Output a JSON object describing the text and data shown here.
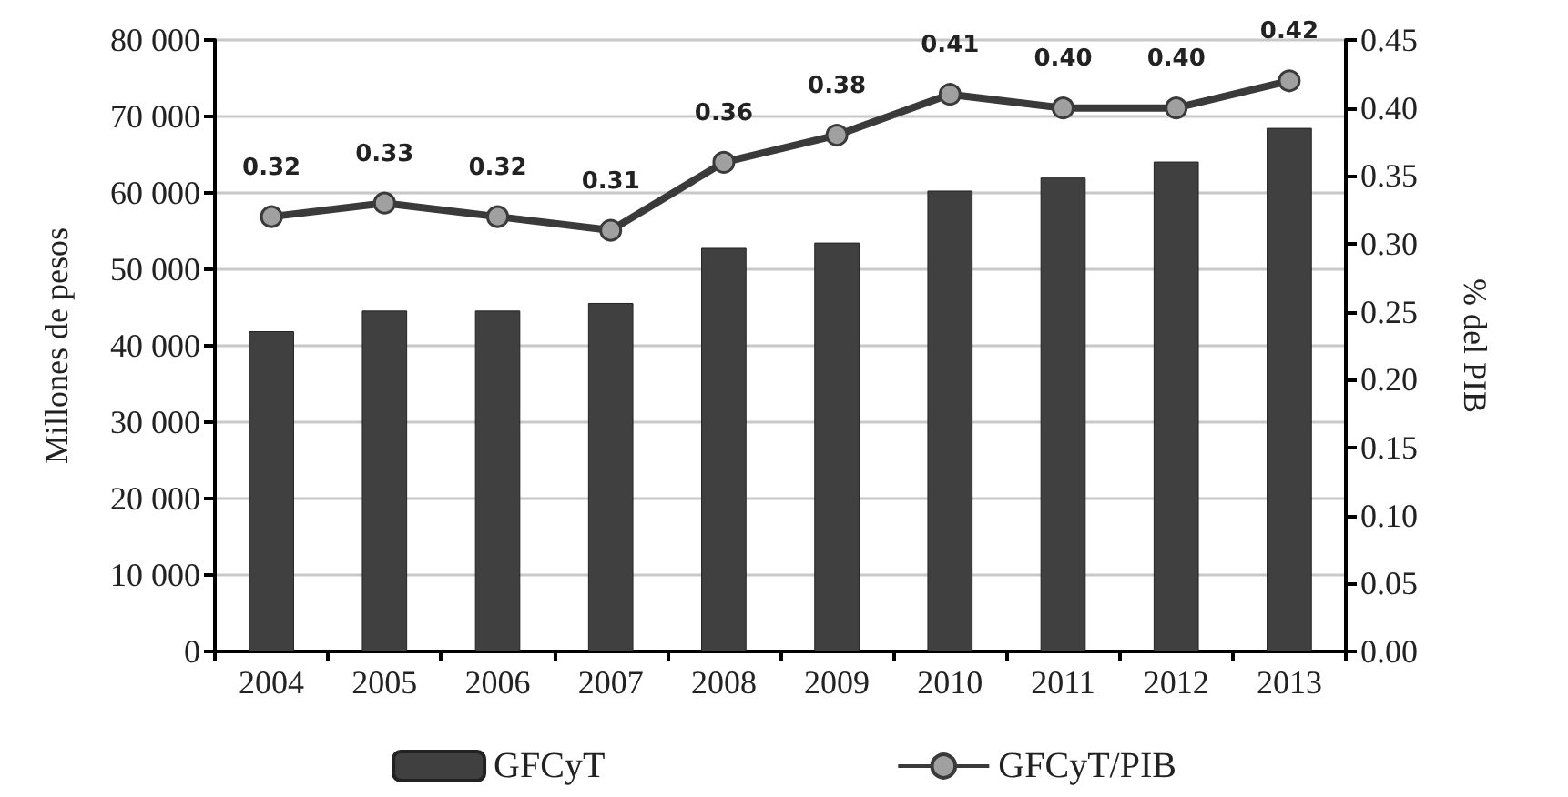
{
  "chart_data": {
    "type": "bar",
    "ylabel": "Millones de pesos",
    "y2label": "% del PIB",
    "categories": [
      "2004",
      "2005",
      "2006",
      "2007",
      "2008",
      "2009",
      "2010",
      "2011",
      "2012",
      "2013"
    ],
    "series": [
      {
        "name": "GFCyT",
        "color": "#404040",
        "values": [
          41900,
          44600,
          44600,
          45600,
          52800,
          53500,
          60300,
          62000,
          64100,
          68500
        ]
      },
      {
        "name": "GFCyT/PIB",
        "type": "line",
        "axis": "y2",
        "color": "#3a3a3a",
        "marker": "circle",
        "values": [
          0.32,
          0.33,
          0.32,
          0.31,
          0.36,
          0.38,
          0.41,
          0.4,
          0.4,
          0.42
        ],
        "value_labels": [
          "0.32",
          "0.33",
          "0.32",
          "0.31",
          "0.36",
          "0.38",
          "0.41",
          "0.40",
          "0.40",
          "0.42"
        ]
      }
    ],
    "ylim": [
      0,
      80000
    ],
    "yticks": [
      {
        "value": 0,
        "label": "0"
      },
      {
        "value": 10000,
        "label": "10 000"
      },
      {
        "value": 20000,
        "label": "20 000"
      },
      {
        "value": 30000,
        "label": "30 000"
      },
      {
        "value": 40000,
        "label": "40 000"
      },
      {
        "value": 50000,
        "label": "50 000"
      },
      {
        "value": 60000,
        "label": "60 000"
      },
      {
        "value": 70000,
        "label": "70 000"
      },
      {
        "value": 80000,
        "label": "80 000"
      }
    ],
    "y2lim": [
      0,
      0.45
    ],
    "y2ticks": [
      {
        "value": 0,
        "label": "0.00"
      },
      {
        "value": 0.05,
        "label": "0.05"
      },
      {
        "value": 0.1,
        "label": "0.10"
      },
      {
        "value": 0.15,
        "label": "0.15"
      },
      {
        "value": 0.2,
        "label": "0.20"
      },
      {
        "value": 0.25,
        "label": "0.25"
      },
      {
        "value": 0.3,
        "label": "0.30"
      },
      {
        "value": 0.35,
        "label": "0.35"
      },
      {
        "value": 0.4,
        "label": "0.40"
      },
      {
        "value": 0.45,
        "label": "0.45"
      }
    ],
    "grid": "y",
    "legend": "bottom"
  }
}
